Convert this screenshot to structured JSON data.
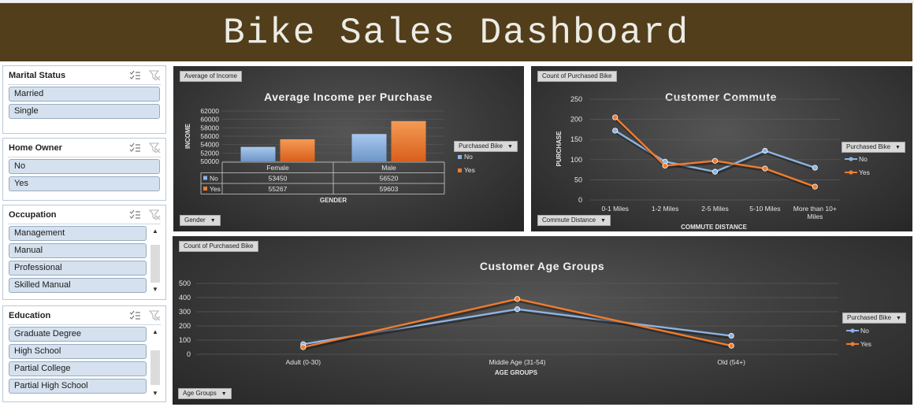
{
  "title": "Bike Sales Dashboard",
  "slicers": [
    {
      "title": "Marital Status",
      "items": [
        "Married",
        "Single"
      ]
    },
    {
      "title": "Home Owner",
      "items": [
        "No",
        "Yes"
      ]
    },
    {
      "title": "Occupation",
      "items": [
        "Management",
        "Manual",
        "Professional",
        "Skilled Manual"
      ]
    },
    {
      "title": "Education",
      "items": [
        "Graduate Degree",
        "High School",
        "Partial College",
        "Partial High School"
      ]
    }
  ],
  "colors": {
    "no": "#8db3e2",
    "yes": "#f07c2e",
    "banner": "#523e1b",
    "grid": "#5a5a5a"
  },
  "chart_data": [
    {
      "type": "bar",
      "title": "Average Income per Purchase",
      "field_button": "Average of Income",
      "axis_button": "Gender",
      "legend_button": "Purchased Bike",
      "xlabel": "GENDER",
      "ylabel": "INCOME",
      "categories": [
        "Female",
        "Male"
      ],
      "series": [
        {
          "name": "No",
          "values": [
            53450,
            56520
          ]
        },
        {
          "name": "Yes",
          "values": [
            55267,
            59603
          ]
        }
      ],
      "table": [
        {
          "name": "No",
          "cells": [
            "53450",
            "56520"
          ]
        },
        {
          "name": "Yes",
          "cells": [
            "55267",
            "59603"
          ]
        }
      ],
      "ylim": [
        50000,
        62000
      ],
      "yticks": [
        "50000",
        "52000",
        "54000",
        "56000",
        "58000",
        "60000",
        "62000"
      ],
      "grid": true,
      "legend": "right"
    },
    {
      "type": "line",
      "title": "Customer Commute",
      "field_button": "Count of Purchased Bike",
      "axis_button": "Commute Distance",
      "legend_button": "Purchased Bike",
      "xlabel": "COMMUTE DISTANCE",
      "ylabel": "PURCHASE",
      "categories": [
        "0-1 Miles",
        "1-2 Miles",
        "2-5 Miles",
        "5-10 Miles",
        "More than 10+ Miles"
      ],
      "series": [
        {
          "name": "No",
          "values": [
            172,
            95,
            70,
            122,
            80
          ]
        },
        {
          "name": "Yes",
          "values": [
            205,
            85,
            97,
            78,
            33
          ]
        }
      ],
      "ylim": [
        0,
        250
      ],
      "yticks": [
        "0",
        "50",
        "100",
        "150",
        "200",
        "250"
      ],
      "grid": true,
      "legend": "right"
    },
    {
      "type": "line",
      "title": "Customer Age Groups",
      "field_button": "Count of Purchased Bike",
      "axis_button": "Age Groups",
      "legend_button": "Purchased Bike",
      "xlabel": "AGE GROUPS",
      "ylabel": "",
      "categories": [
        "Adult (0-30)",
        "Middle Age (31-54)",
        "Old (54+)"
      ],
      "series": [
        {
          "name": "No",
          "values": [
            71,
            318,
            130
          ]
        },
        {
          "name": "Yes",
          "values": [
            50,
            390,
            60
          ]
        }
      ],
      "ylim": [
        0,
        500
      ],
      "yticks": [
        "0",
        "100",
        "200",
        "300",
        "400",
        "500"
      ],
      "grid": true,
      "legend": "right"
    }
  ]
}
